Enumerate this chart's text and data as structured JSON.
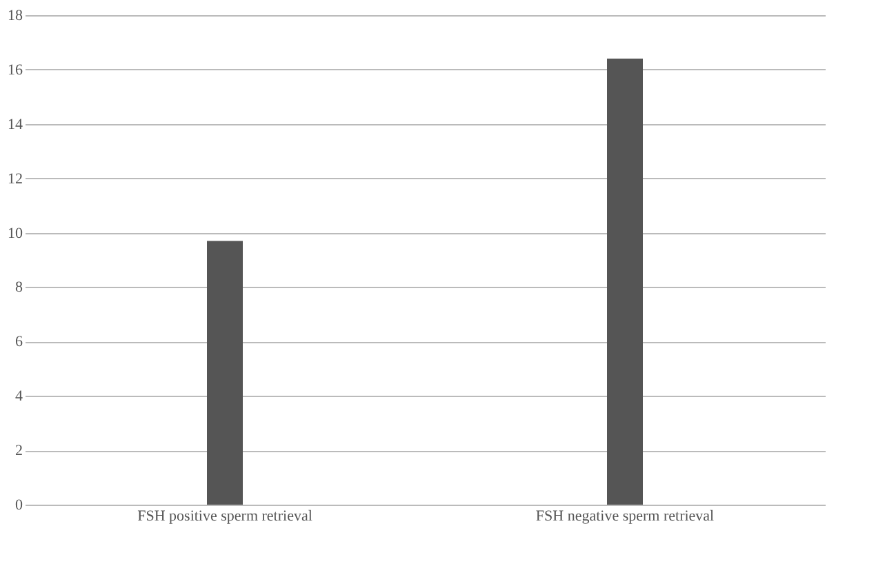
{
  "chart_data": {
    "type": "bar",
    "categories": [
      "FSH positive sperm retrieval",
      "FSH negative sperm retrieval"
    ],
    "values": [
      9.7,
      16.4
    ],
    "color": "#555555",
    "ylim": [
      0,
      18
    ],
    "yticks": [
      0,
      2,
      4,
      6,
      8,
      10,
      12,
      14,
      16,
      18
    ],
    "grid": "y"
  }
}
